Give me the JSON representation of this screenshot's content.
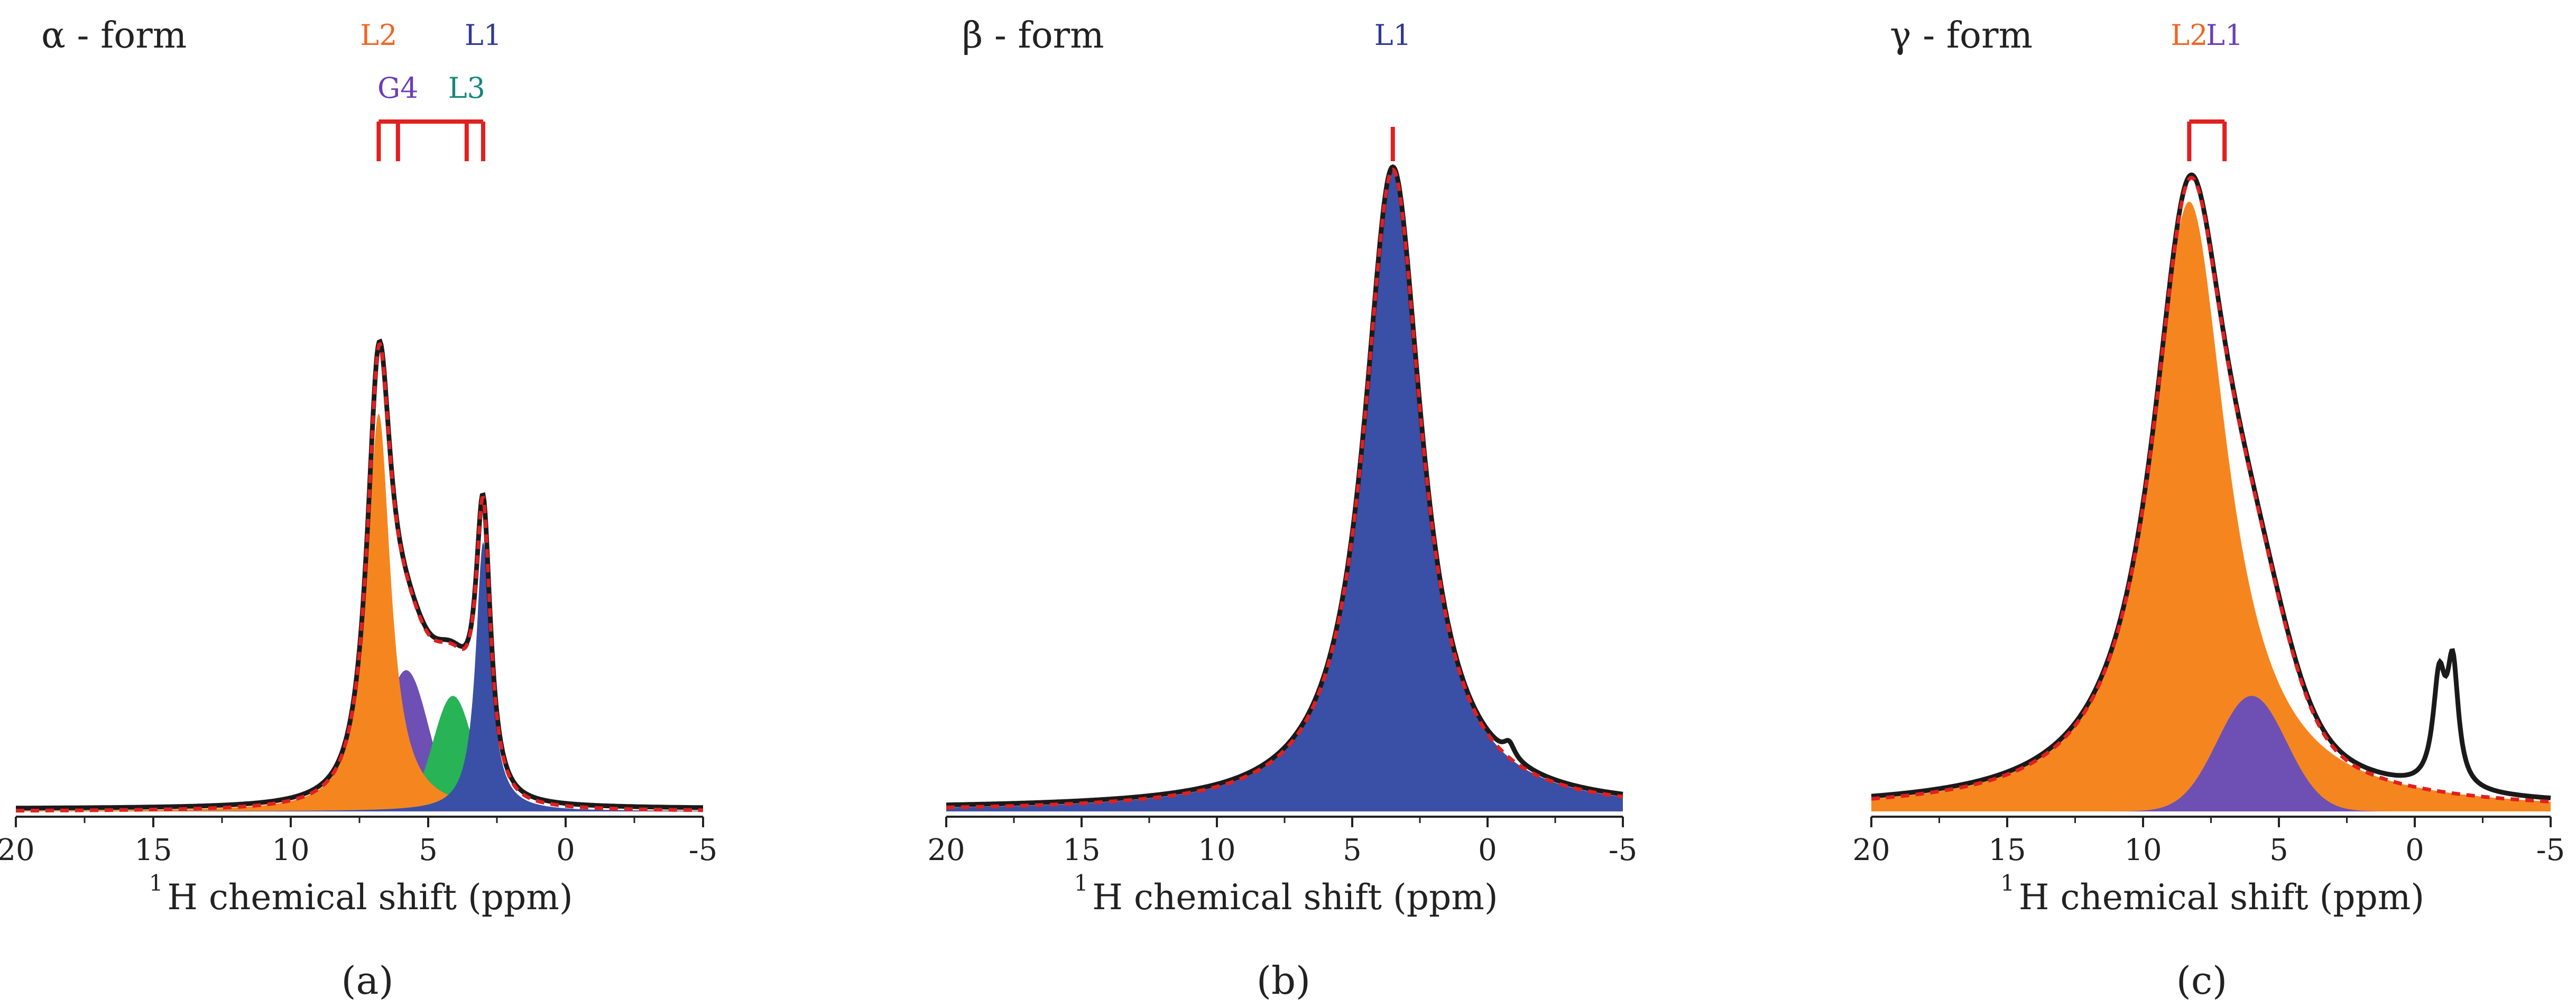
{
  "figure": {
    "panels": [
      {
        "panel_label": "(a)",
        "title": "α - form"
      },
      {
        "panel_label": "(b)",
        "title": "β - form"
      },
      {
        "panel_label": "(c)",
        "title": "γ - form"
      }
    ]
  },
  "colors": {
    "orange": "#f5861f",
    "purple": "#6e4fb3",
    "green": "#27b356",
    "blue": "#3a4fa6",
    "experimental": "#1a1a1a",
    "fit": "#e02020",
    "marker": "#e02020",
    "label_orange": "#f26522",
    "label_purple": "#6a3fb5",
    "label_teal": "#15867a",
    "label_blue": "#2e3a96"
  },
  "chart_data": [
    {
      "type": "area",
      "title": "α - form",
      "panel_label": "(a)",
      "xlabel_sup": "1",
      "xlabel": "H chemical shift (ppm)",
      "xlim": [
        20,
        -5
      ],
      "xticks": [
        20,
        15,
        10,
        5,
        0,
        -5
      ],
      "xtick_labels": [
        "20",
        "15",
        "10",
        "5",
        "0",
        "-5"
      ],
      "ylim": [
        0,
        1.05
      ],
      "grid": false,
      "baseline": 0.0,
      "components": [
        {
          "peak": "L2",
          "color": "orange",
          "center": 6.8,
          "height": 0.62,
          "fwhm": 1.05
        },
        {
          "peak": "G4",
          "color": "purple",
          "center": 5.8,
          "height": 0.22,
          "fwhm": 1.9,
          "gaussian": true
        },
        {
          "peak": "L3",
          "color": "green",
          "center": 4.1,
          "height": 0.18,
          "fwhm": 1.7,
          "gaussian": true
        },
        {
          "peak": "L1",
          "color": "blue",
          "center": 3.0,
          "height": 0.42,
          "fwhm": 0.65
        }
      ],
      "extra_experimental": [],
      "markers": [
        {
          "label": "L2",
          "ppm": 6.8,
          "color": "label_orange",
          "row": "top"
        },
        {
          "label": "L1",
          "ppm": 3.0,
          "color": "label_blue",
          "row": "top"
        },
        {
          "label": "G4",
          "ppm": 6.1,
          "color": "label_purple",
          "row": "bottom"
        },
        {
          "label": "L3",
          "ppm": 3.6,
          "color": "label_teal",
          "row": "bottom"
        }
      ]
    },
    {
      "type": "area",
      "title": "β - form",
      "panel_label": "(b)",
      "xlabel_sup": "1",
      "xlabel": "H chemical shift (ppm)",
      "xlim": [
        20,
        -5
      ],
      "xticks": [
        20,
        15,
        10,
        5,
        0,
        -5
      ],
      "xtick_labels": [
        "20",
        "15",
        "10",
        "5",
        "0",
        "-5"
      ],
      "ylim": [
        0,
        1.05
      ],
      "grid": false,
      "baseline": 0.0,
      "components": [
        {
          "peak": "L1",
          "color": "blue",
          "center": 3.5,
          "height": 1.0,
          "fwhm": 2.6
        }
      ],
      "extra_experimental": [
        {
          "center": -0.8,
          "height": 0.022,
          "fwhm": 0.5
        }
      ],
      "markers": [
        {
          "label": "L1",
          "ppm": 3.5,
          "color": "label_blue",
          "row": "top"
        }
      ]
    },
    {
      "type": "area",
      "title": "γ - form",
      "panel_label": "(c)",
      "xlabel_sup": "1",
      "xlabel": "H chemical shift (ppm)",
      "xlim": [
        20,
        -5
      ],
      "xticks": [
        20,
        15,
        10,
        5,
        0,
        -5
      ],
      "xtick_labels": [
        "20",
        "15",
        "10",
        "5",
        "0",
        "-5"
      ],
      "ylim": [
        0,
        1.05
      ],
      "grid": false,
      "baseline": 0.0,
      "components": [
        {
          "peak": "L2",
          "color": "orange",
          "center": 8.3,
          "height": 0.95,
          "fwhm": 3.4
        },
        {
          "peak": "L1",
          "color": "purple",
          "center": 6.0,
          "height": 0.18,
          "fwhm": 3.0,
          "gaussian": true
        }
      ],
      "extra_experimental": [
        {
          "center": -0.9,
          "height": 0.16,
          "fwhm": 0.55
        },
        {
          "center": -1.4,
          "height": 0.18,
          "fwhm": 0.5
        }
      ],
      "markers": [
        {
          "label": "L2",
          "ppm": 8.3,
          "color": "label_orange",
          "row": "top"
        },
        {
          "label": "L1",
          "ppm": 7.0,
          "color": "label_purple",
          "row": "top"
        }
      ]
    }
  ]
}
